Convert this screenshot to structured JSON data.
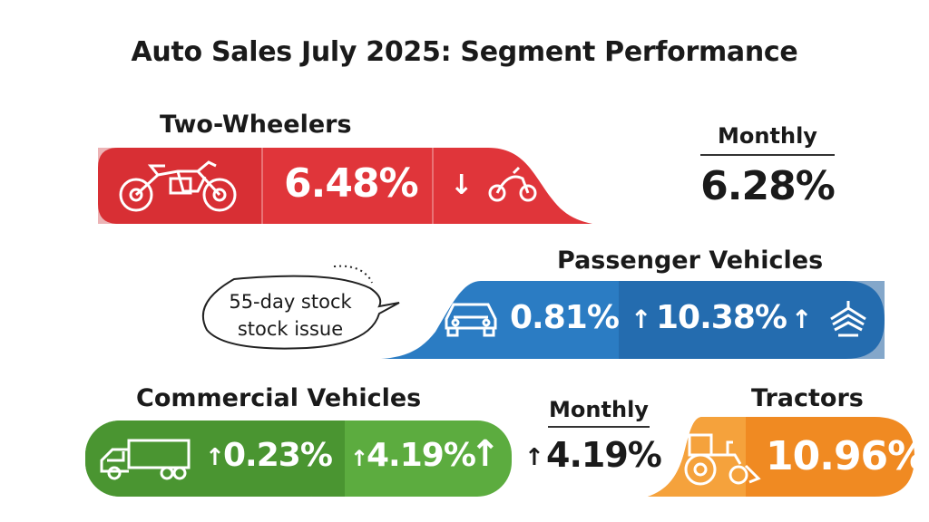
{
  "title": "Auto Sales July 2025: Segment Performance",
  "colors": {
    "two_wheelers": "#e0353a",
    "passenger": "#2b7cc3",
    "commercial": "#5cac3f",
    "tractors": "#f08a22"
  },
  "two_wheelers": {
    "label": "Two-Wheelers",
    "value": "6.48%",
    "arrow": "↓",
    "icons": [
      "motorcycle-icon",
      "scooter-icon"
    ]
  },
  "monthly_top": {
    "label": "Monthly",
    "value": "6.28%"
  },
  "passenger_vehicles": {
    "label": "Passenger Vehicles",
    "value1": "0.81%",
    "value2": "10.38%",
    "arrow": "↑",
    "icons": [
      "car-icon",
      "boat-icon"
    ]
  },
  "callout": {
    "line1": "55-day stock",
    "line2": "stock issue"
  },
  "commercial_vehicles": {
    "label": "Commercial Vehicles",
    "value1": "0.23%",
    "value2": "4.19%",
    "arrow": "↑",
    "icons": [
      "truck-icon"
    ]
  },
  "monthly_bottom": {
    "label": "Monthly",
    "value": "4.19%",
    "arrow": "↑"
  },
  "tractors": {
    "label": "Tractors",
    "value": "10.96%",
    "icons": [
      "tractor-icon"
    ]
  }
}
